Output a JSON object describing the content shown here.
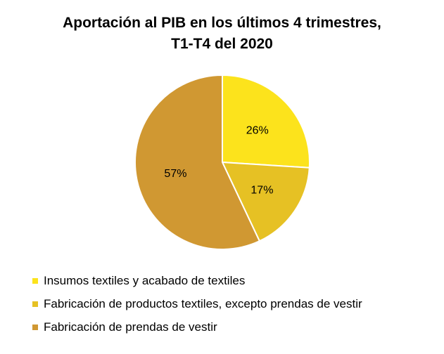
{
  "chart_data": {
    "type": "pie",
    "title": [
      "Aportación al PIB en los últimos 4 trimestres,",
      "T1-T4 del 2020"
    ],
    "categories": [
      "Insumos textiles y acabado de textiles",
      "Fabricación de productos textiles, excepto prendas de vestir",
      "Fabricación de prendas de vestir"
    ],
    "values": [
      26,
      17,
      57
    ],
    "data_labels": [
      "26%",
      "17%",
      "57%"
    ],
    "colors": [
      "#FCE31C",
      "#E6C124",
      "#D09832"
    ],
    "legend_position": "bottom-left"
  }
}
